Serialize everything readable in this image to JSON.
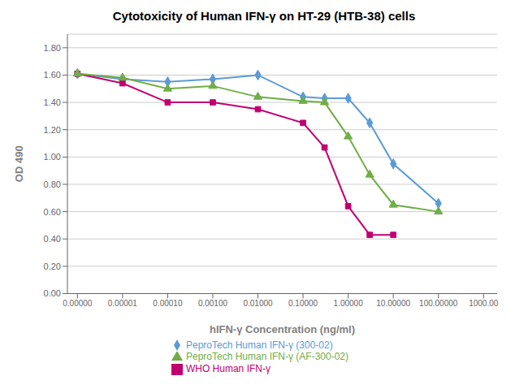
{
  "chart_data": {
    "type": "line",
    "title": "Cytotoxicity of Human IFN-γ on HT-29 (HTB-38) cells",
    "x_label": "hIFN-γ Concentration (ng/ml)",
    "y_label": "OD 490",
    "log": "x",
    "grid": "y",
    "legend": "bottom",
    "x": [
      1e-06,
      1e-05,
      0.0001,
      0.001,
      0.01,
      0.1,
      0.3,
      1.0,
      3.0,
      10.0,
      100.0
    ],
    "xlim": [
      6e-07,
      2000
    ],
    "xticks": [
      {
        "value": 1e-06,
        "label": "0.00000"
      },
      {
        "value": 1e-05,
        "label": "0.00001"
      },
      {
        "value": 0.0001,
        "label": "0.00010"
      },
      {
        "value": 0.001,
        "label": "0.00100"
      },
      {
        "value": 0.01,
        "label": "0.01000"
      },
      {
        "value": 0.1,
        "label": "0.10000"
      },
      {
        "value": 1.0,
        "label": "1.00000"
      },
      {
        "value": 10.0,
        "label": "10.00000"
      },
      {
        "value": 100.0,
        "label": "100.00000"
      },
      {
        "value": 1000.0,
        "label": "1000.00"
      }
    ],
    "ylim": [
      0.0,
      1.9
    ],
    "yticks": [
      {
        "value": 0.0,
        "label": "0.00"
      },
      {
        "value": 0.2,
        "label": "0.20"
      },
      {
        "value": 0.4,
        "label": "0.40"
      },
      {
        "value": 0.6,
        "label": "0.60"
      },
      {
        "value": 0.8,
        "label": "0.80"
      },
      {
        "value": 1.0,
        "label": "1.00"
      },
      {
        "value": 1.2,
        "label": "1.20"
      },
      {
        "value": 1.4,
        "label": "1.40"
      },
      {
        "value": 1.6,
        "label": "1.60"
      },
      {
        "value": 1.8,
        "label": "1.80"
      }
    ],
    "series": [
      {
        "name": "PeproTech Human IFN-γ (300-02)",
        "color": "#5B9BD5",
        "marker": "diamond",
        "values": [
          1.61,
          1.57,
          1.55,
          1.57,
          1.6,
          1.44,
          1.43,
          1.43,
          1.25,
          0.95,
          0.66
        ]
      },
      {
        "name": "WHO Human IFN-γ",
        "color": "#C00070",
        "marker": "square",
        "values": [
          1.61,
          1.54,
          1.4,
          1.4,
          1.35,
          1.25,
          1.07,
          0.64,
          0.43,
          0.43,
          null
        ]
      },
      {
        "name": "PeproTech Human IFN-γ (AF-300-02)",
        "color": "#70AD47",
        "marker": "triangle",
        "values": [
          1.61,
          1.58,
          1.5,
          1.52,
          1.44,
          1.41,
          1.4,
          1.15,
          0.87,
          0.65,
          0.6
        ]
      }
    ]
  }
}
